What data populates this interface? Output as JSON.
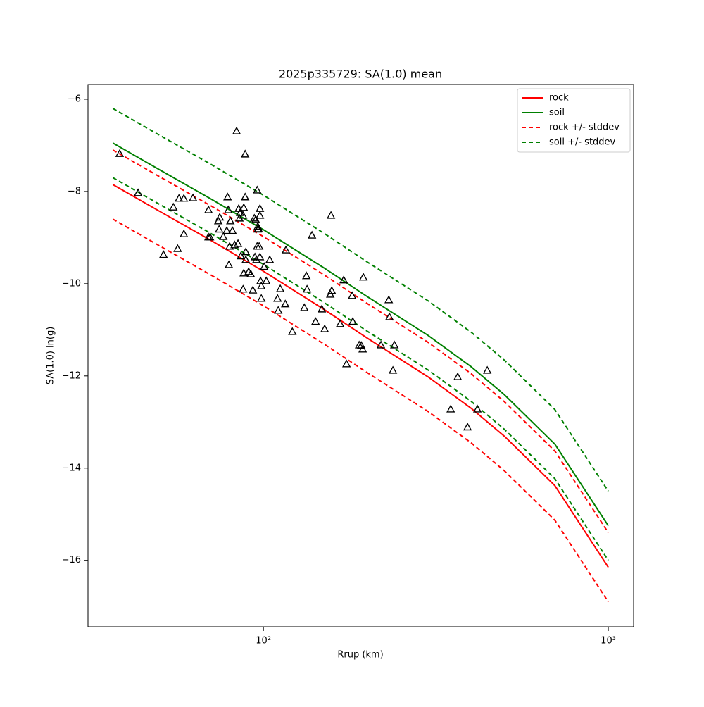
{
  "chart_data": {
    "type": "line",
    "title": "2025p335729: SA(1.0) mean",
    "x_label": "Rrup (km)",
    "y_label": "SA(1.0) ln(g)",
    "xscale": "log",
    "xlim": [
      31.0,
      1184
    ],
    "ylim": [
      -17.44,
      -5.68
    ],
    "xticks": [
      {
        "value": 100,
        "label": "10²"
      },
      {
        "value": 1000,
        "label": "10³"
      }
    ],
    "yticks": [
      {
        "value": -16,
        "label": "−16"
      },
      {
        "value": -14,
        "label": "−14"
      },
      {
        "value": -12,
        "label": "−12"
      },
      {
        "value": -10,
        "label": "−10"
      },
      {
        "value": -8,
        "label": "−8"
      },
      {
        "value": -6,
        "label": "−6"
      }
    ],
    "legend": "upper right",
    "x": [
      36.6,
      50,
      70,
      100,
      150,
      200,
      300,
      400,
      500,
      700,
      1000
    ],
    "series": [
      {
        "name": "rock",
        "color": "#ff0000",
        "dash": false,
        "values": [
          -7.85,
          -8.43,
          -9.05,
          -9.73,
          -10.56,
          -11.18,
          -12.02,
          -12.7,
          -13.31,
          -14.38,
          -16.15
        ]
      },
      {
        "name": "soil",
        "color": "#008000",
        "dash": false,
        "values": [
          -6.95,
          -7.53,
          -8.15,
          -8.83,
          -9.66,
          -10.28,
          -11.12,
          -11.8,
          -12.41,
          -13.48,
          -15.25
        ]
      },
      {
        "name": "rock +/- stddev",
        "color": "#ff0000",
        "dash": true,
        "values_upper": [
          -7.1,
          -7.68,
          -8.3,
          -8.98,
          -9.81,
          -10.43,
          -11.27,
          -11.95,
          -12.56,
          -13.63,
          -15.4
        ],
        "values_lower": [
          -8.6,
          -9.18,
          -9.8,
          -10.48,
          -11.31,
          -11.93,
          -12.77,
          -13.45,
          -14.06,
          -15.13,
          -16.9
        ]
      },
      {
        "name": "soil +/- stddev",
        "color": "#008000",
        "dash": true,
        "values_upper": [
          -6.2,
          -6.78,
          -7.4,
          -8.08,
          -8.91,
          -9.53,
          -10.37,
          -11.05,
          -11.66,
          -12.73,
          -14.5
        ],
        "values_lower": [
          -7.7,
          -8.28,
          -8.9,
          -9.58,
          -10.41,
          -11.03,
          -11.87,
          -12.55,
          -13.16,
          -14.23,
          -16.0
        ]
      }
    ],
    "scatter": {
      "color": "#000000",
      "x": [
        38.3,
        43.3,
        51.3,
        54.8,
        56.4,
        56.9,
        58.8,
        58.8,
        62.5,
        69.3,
        69.3,
        70.0,
        74.0,
        74.4,
        74.7,
        76.5,
        78.3,
        78.7,
        79.1,
        79.4,
        79.8,
        80.2,
        81.3,
        82.5,
        83.6,
        84.4,
        84.8,
        85.2,
        85.6,
        86.0,
        87.3,
        87.3,
        87.7,
        87.7,
        88.5,
        88.5,
        88.9,
        88.9,
        90.6,
        91.9,
        93.2,
        94.1,
        94.5,
        95.0,
        95.4,
        95.9,
        95.9,
        96.3,
        96.3,
        96.8,
        97.2,
        97.7,
        97.7,
        97.7,
        98.1,
        98.6,
        98.6,
        100.5,
        101.9,
        104.3,
        109.9,
        110.4,
        111.9,
        115.7,
        116.2,
        121.3,
        131.4,
        133.2,
        133.8,
        138.3,
        141.6,
        147.7,
        150.5,
        156.3,
        157.0,
        157.8,
        166.9,
        170.9,
        174.1,
        180.8,
        181.6,
        189.5,
        192.2,
        194.0,
        194.9,
        219.2,
        230.9,
        231.9,
        237.4,
        239.7,
        349.2,
        365.9,
        390.7,
        417.3,
        445.7
      ],
      "y": [
        -7.18,
        -8.03,
        -9.37,
        -8.34,
        -9.24,
        -8.15,
        -8.15,
        -8.92,
        -8.14,
        -8.4,
        -8.99,
        -8.99,
        -8.64,
        -8.82,
        -8.56,
        -8.98,
        -8.85,
        -8.12,
        -8.4,
        -9.59,
        -9.19,
        -8.64,
        -8.85,
        -9.16,
        -6.69,
        -9.13,
        -8.37,
        -8.58,
        -8.46,
        -9.4,
        -8.52,
        -10.12,
        -8.35,
        -9.77,
        -7.19,
        -8.12,
        -9.31,
        -9.48,
        -9.74,
        -9.79,
        -10.14,
        -8.58,
        -9.42,
        -8.61,
        -9.48,
        -7.97,
        -9.19,
        -8.76,
        -8.82,
        -8.81,
        -9.19,
        -8.37,
        -8.52,
        -9.42,
        -9.94,
        -10.32,
        -10.05,
        -9.63,
        -9.94,
        -9.48,
        -10.32,
        -10.58,
        -10.11,
        -10.44,
        -9.27,
        -11.04,
        -10.52,
        -9.83,
        -10.12,
        -8.95,
        -10.82,
        -10.55,
        -10.98,
        -10.23,
        -8.52,
        -10.15,
        -10.87,
        -9.92,
        -11.74,
        -10.26,
        -10.82,
        -11.33,
        -11.34,
        -11.42,
        -9.86,
        -11.33,
        -10.35,
        -10.72,
        -11.88,
        -11.33,
        -12.72,
        -12.02,
        -13.11,
        -12.72,
        -11.88
      ]
    }
  }
}
